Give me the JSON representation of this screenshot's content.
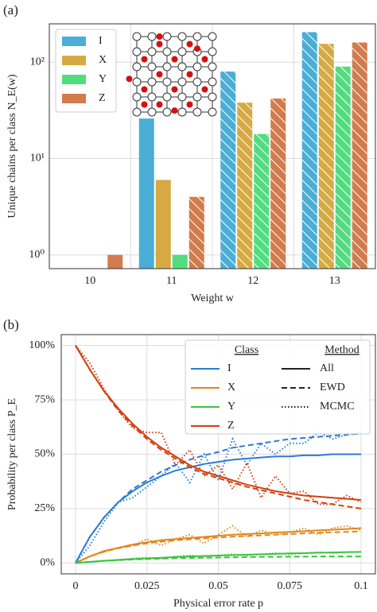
{
  "chart_data": [
    {
      "type": "bar",
      "panel_label": "(a)",
      "x_label": "Weight w",
      "y_label": "Unique chains per class N_E(w)",
      "categories": [
        "10",
        "11",
        "12",
        "13"
      ],
      "series": [
        {
          "name": "I",
          "color": "#4aaed6",
          "values": [
            null,
            26,
            80,
            205
          ],
          "hatch": [
            false,
            false,
            true,
            true
          ]
        },
        {
          "name": "X",
          "color": "#d6aa42",
          "values": [
            null,
            6,
            38,
            155
          ],
          "hatch": [
            false,
            false,
            true,
            true
          ]
        },
        {
          "name": "Y",
          "color": "#52dc80",
          "values": [
            null,
            1,
            18,
            90
          ],
          "hatch": [
            false,
            false,
            true,
            true
          ]
        },
        {
          "name": "Z",
          "color": "#d27b4c",
          "values": [
            1,
            4,
            42,
            160
          ],
          "hatch": [
            false,
            true,
            true,
            true
          ]
        }
      ],
      "log_scale": true,
      "ylim": [
        0.72,
        250
      ],
      "yticks": [
        {
          "value": 1,
          "label": "10⁰"
        },
        {
          "value": 10,
          "label": "10¹"
        },
        {
          "value": 100,
          "label": "10²"
        }
      ],
      "grid": true,
      "legend": "upper left"
    },
    {
      "type": "line",
      "panel_label": "(b)",
      "x_label": "Physical error rate p",
      "y_label": "Probability per class P_E",
      "x": [
        0,
        0.005,
        0.01,
        0.015,
        0.02,
        0.025,
        0.03,
        0.035,
        0.04,
        0.045,
        0.05,
        0.055,
        0.06,
        0.065,
        0.07,
        0.075,
        0.08,
        0.085,
        0.09,
        0.095,
        0.1
      ],
      "legend_titles": [
        "Class",
        "Method"
      ],
      "methods": [
        {
          "name": "All",
          "dash": "none"
        },
        {
          "name": "EWD",
          "dash": "7,4"
        },
        {
          "name": "MCMC",
          "dash": "1.5,2.5"
        }
      ],
      "classes": [
        {
          "name": "I",
          "color": "#2b7bd8",
          "values": [
            [
              0,
              12,
              21,
              28,
              33,
              37,
              40,
              42.5,
              44,
              45.5,
              46.5,
              47.5,
              48,
              48.5,
              49,
              49,
              49.5,
              49.5,
              50,
              50,
              50
            ],
            [
              0,
              12,
              21,
              28,
              34,
              38,
              42,
              45,
              47.5,
              49.5,
              51,
              53,
              54,
              55,
              56,
              57,
              57.5,
              58,
              58.5,
              59,
              59.5
            ],
            [
              0,
              8,
              19,
              28,
              30,
              35,
              40,
              46,
              37,
              50,
              38,
              57,
              45,
              55,
              50,
              55,
              55,
              60,
              57,
              59,
              60
            ]
          ]
        },
        {
          "name": "X",
          "color": "#e2861c",
          "values": [
            [
              0,
              3,
              5.5,
              7,
              8.5,
              9.5,
              10.5,
              11,
              11.5,
              12,
              12.5,
              13,
              13.3,
              13.6,
              14,
              14.3,
              14.6,
              15,
              15.3,
              15.6,
              16
            ],
            [
              0,
              3,
              5.3,
              6.8,
              8,
              9,
              9.8,
              10.4,
              10.9,
              11.3,
              11.7,
              12.1,
              12.4,
              12.7,
              13,
              13.3,
              13.6,
              13.9,
              14.1,
              14.3,
              14.5
            ],
            [
              0,
              3,
              5,
              7,
              8,
              11,
              8,
              11,
              13,
              9,
              13,
              17,
              12,
              15,
              13,
              14,
              16,
              13,
              16,
              17,
              15
            ]
          ]
        },
        {
          "name": "Y",
          "color": "#3cc43c",
          "values": [
            [
              0,
              0.5,
              1,
              1.4,
              1.8,
              2.1,
              2.4,
              2.7,
              3,
              3.2,
              3.4,
              3.6,
              3.8,
              4,
              4.2,
              4.4,
              4.5,
              4.7,
              4.8,
              5,
              5.1
            ],
            [
              0,
              0.5,
              1,
              1.3,
              1.6,
              1.8,
              2,
              2.2,
              2.3,
              2.4,
              2.5,
              2.6,
              2.7,
              2.8,
              2.8,
              2.9,
              2.9,
              3,
              3,
              3,
              3
            ],
            [
              0,
              0.5,
              1,
              1.5,
              2,
              2.5,
              2,
              3,
              3.5,
              3,
              3.5,
              4,
              3.5,
              4,
              4.5,
              4,
              4.5,
              5,
              4.5,
              5,
              5
            ]
          ]
        },
        {
          "name": "Z",
          "color": "#d2400e",
          "values": [
            [
              100,
              89,
              79,
              71,
              64,
              58,
              53,
              49,
              45,
              42,
              40,
              38,
              36,
              34.5,
              33,
              32,
              31,
              30.5,
              30,
              29.5,
              29
            ],
            [
              100,
              89,
              79,
              70,
              63,
              57,
              52,
              48,
              44,
              41,
              39,
              37,
              35,
              33.5,
              32,
              30.5,
              29,
              28,
              27,
              26,
              25
            ],
            [
              100,
              92,
              80,
              70,
              62,
              60,
              60,
              45,
              52,
              40,
              45,
              34,
              46,
              30,
              40,
              32,
              33,
              27,
              27,
              31,
              28
            ]
          ]
        }
      ],
      "xlim": [
        -0.005,
        0.105
      ],
      "xticks": [
        0,
        0.025,
        0.05,
        0.075,
        0.1
      ],
      "ylim": [
        -5,
        105
      ],
      "yticks": [
        {
          "value": 0,
          "label": "0%"
        },
        {
          "value": 25,
          "label": "25%"
        },
        {
          "value": 50,
          "label": "50%"
        },
        {
          "value": 75,
          "label": "75%"
        },
        {
          "value": 100,
          "label": "100%"
        }
      ],
      "grid": true,
      "legend": "upper right"
    }
  ]
}
